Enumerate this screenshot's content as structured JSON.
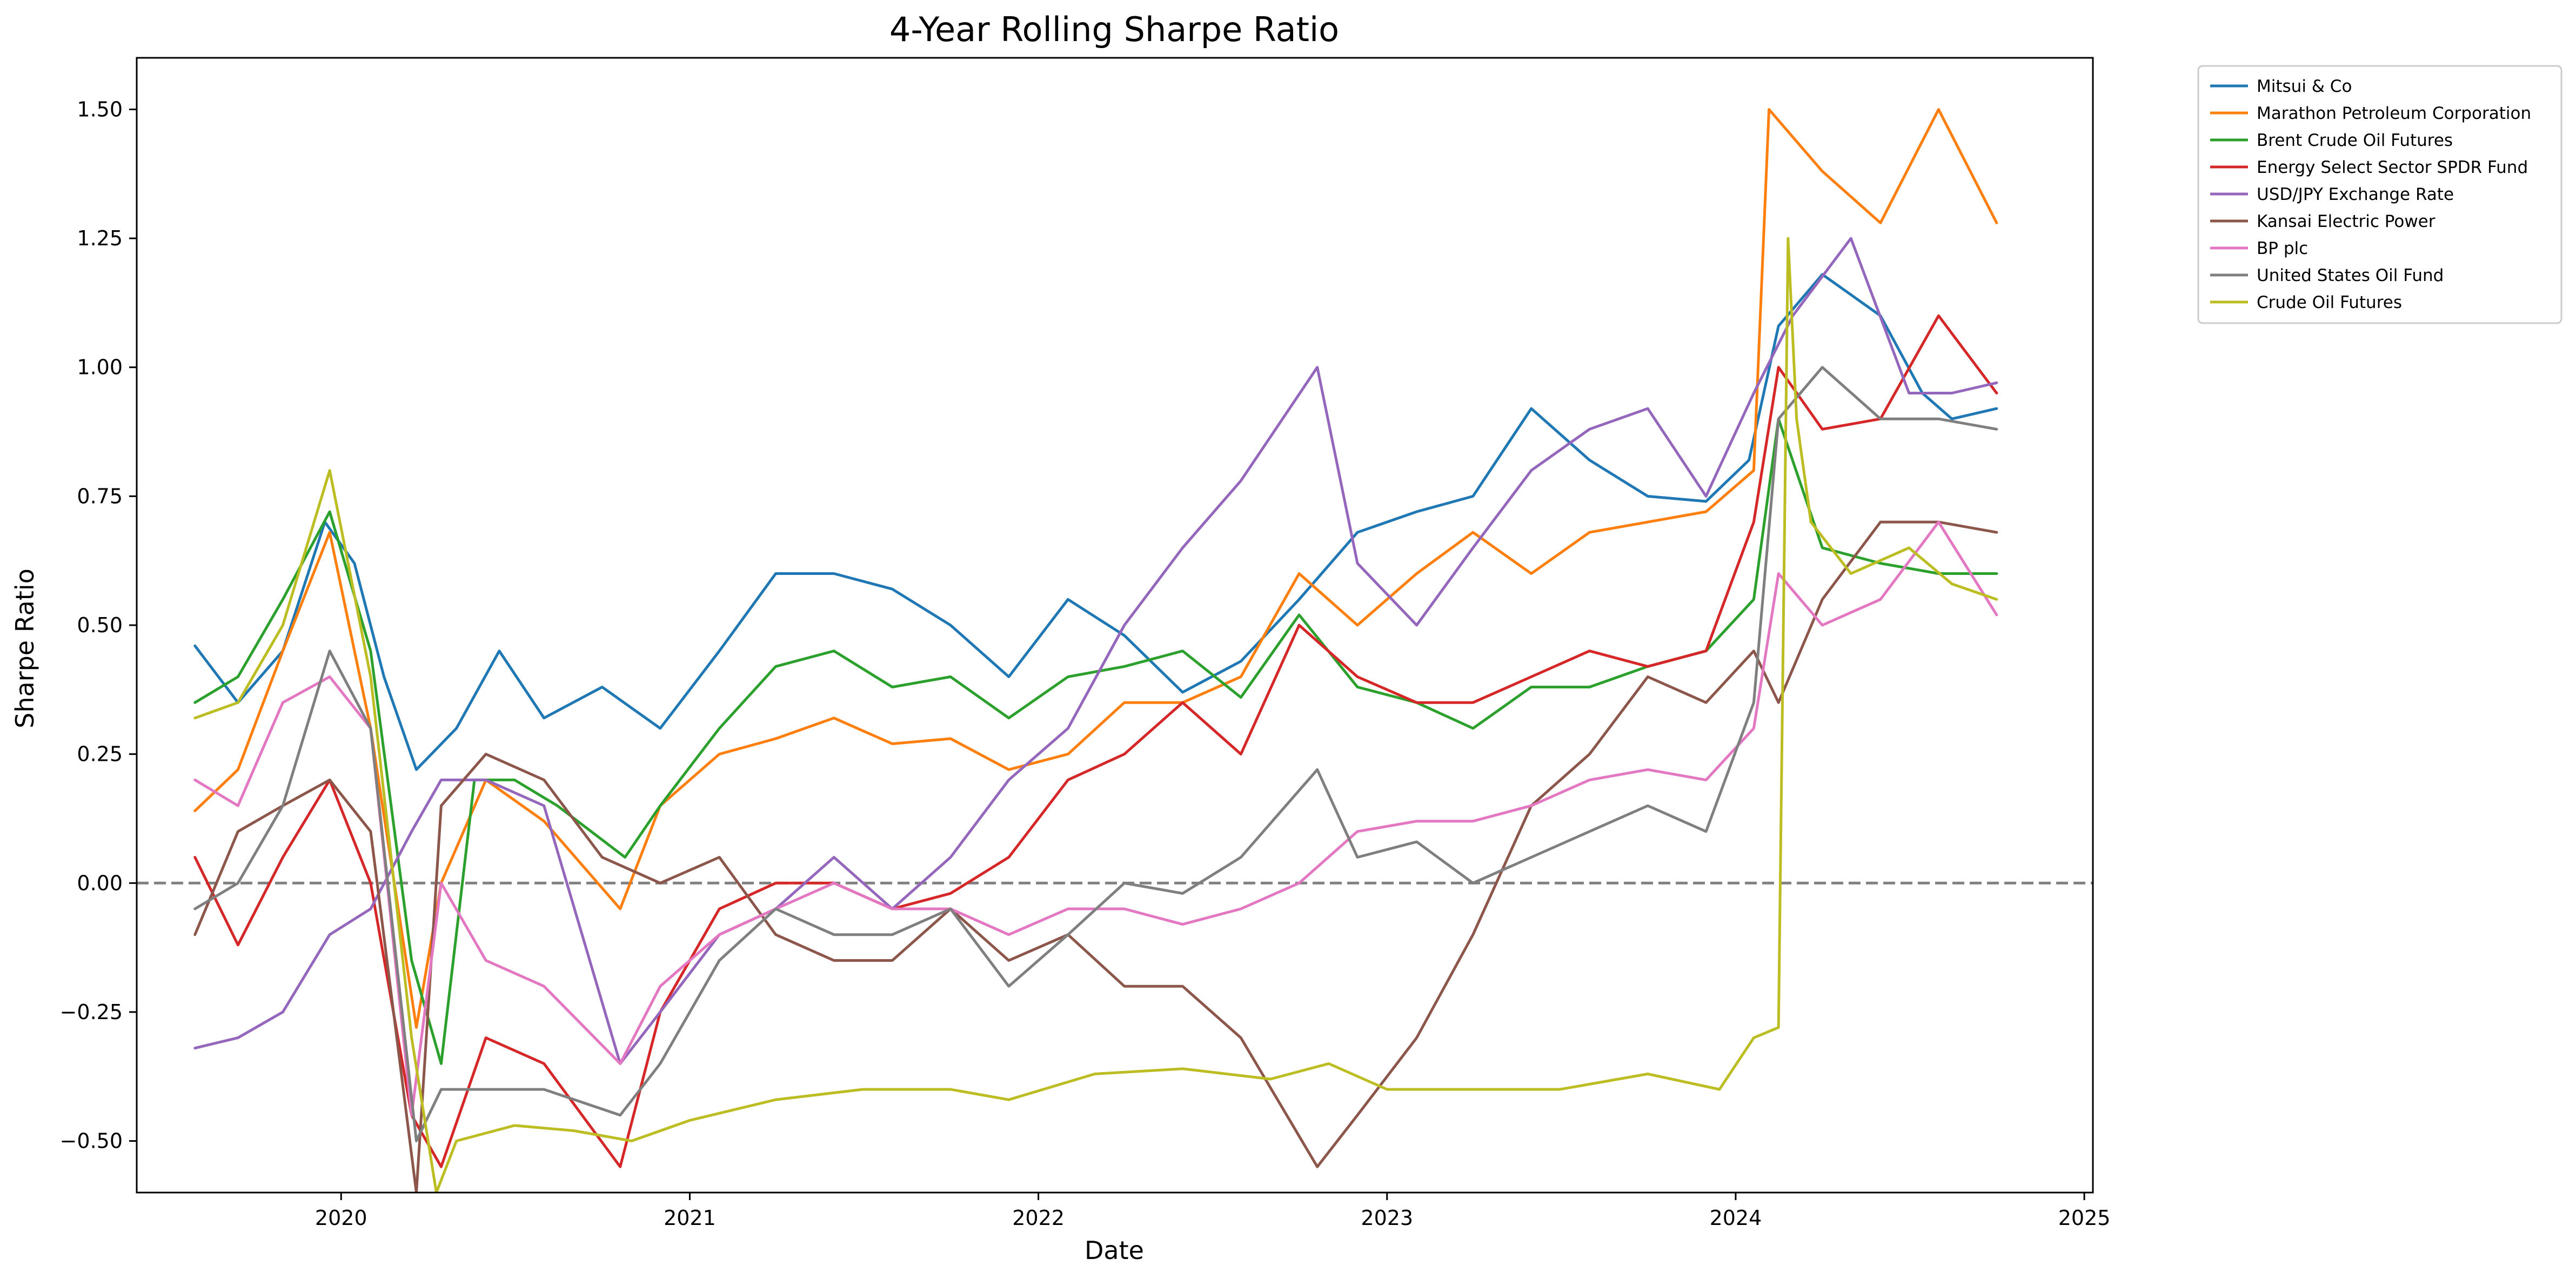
{
  "chart_data": {
    "type": "line",
    "title": "4-Year Rolling Sharpe Ratio",
    "xlabel": "Date",
    "ylabel": "Sharpe Ratio",
    "xlim": [
      "2019-06-01",
      "2025-01-10"
    ],
    "ylim": [
      -0.6,
      1.6
    ],
    "x_ticks": [
      "2020",
      "2021",
      "2022",
      "2023",
      "2024",
      "2025"
    ],
    "y_ticks": [
      1.5,
      1.25,
      1.0,
      0.75,
      0.5,
      0.25,
      0.0,
      -0.25,
      -0.5
    ],
    "y_tick_labels": [
      "1.50",
      "1.25",
      "1.00",
      "0.75",
      "0.50",
      "0.25",
      "0.00",
      "−0.25",
      "−0.50"
    ],
    "reference_line": {
      "y": 0.0,
      "style": "dashed",
      "color": "#808080"
    },
    "legend_position": "outside-top-right",
    "grid": false,
    "series": [
      {
        "name": "Mitsui & Co",
        "color": "#1f77b4",
        "x": [
          "2019-08-01",
          "2019-09-15",
          "2019-11-01",
          "2019-12-15",
          "2020-01-15",
          "2020-02-15",
          "2020-03-20",
          "2020-05-01",
          "2020-06-15",
          "2020-08-01",
          "2020-10-01",
          "2020-12-01",
          "2021-02-01",
          "2021-04-01",
          "2021-06-01",
          "2021-08-01",
          "2021-10-01",
          "2021-12-01",
          "2022-02-01",
          "2022-04-01",
          "2022-06-01",
          "2022-08-01",
          "2022-10-01",
          "2022-12-01",
          "2023-02-01",
          "2023-04-01",
          "2023-06-01",
          "2023-08-01",
          "2023-10-01",
          "2023-12-01",
          "2024-01-15",
          "2024-02-15",
          "2024-04-01",
          "2024-06-01",
          "2024-07-15",
          "2024-08-15",
          "2024-10-01"
        ],
        "values": [
          0.46,
          0.35,
          0.45,
          0.7,
          0.62,
          0.4,
          0.22,
          0.3,
          0.45,
          0.32,
          0.38,
          0.3,
          0.45,
          0.6,
          0.6,
          0.57,
          0.5,
          0.4,
          0.55,
          0.48,
          0.37,
          0.43,
          0.55,
          0.68,
          0.72,
          0.75,
          0.92,
          0.82,
          0.75,
          0.74,
          0.82,
          1.08,
          1.18,
          1.1,
          0.95,
          0.9,
          0.92
        ]
      },
      {
        "name": "Marathon Petroleum Corporation",
        "color": "#ff7f0e",
        "x": [
          "2019-08-01",
          "2019-09-15",
          "2019-11-01",
          "2019-12-20",
          "2020-02-01",
          "2020-03-20",
          "2020-04-15",
          "2020-06-01",
          "2020-08-01",
          "2020-10-20",
          "2020-12-01",
          "2021-02-01",
          "2021-04-01",
          "2021-06-01",
          "2021-08-01",
          "2021-10-01",
          "2021-12-01",
          "2022-02-01",
          "2022-04-01",
          "2022-06-01",
          "2022-08-01",
          "2022-10-01",
          "2022-12-01",
          "2023-02-01",
          "2023-04-01",
          "2023-06-01",
          "2023-08-01",
          "2023-10-01",
          "2023-12-01",
          "2024-01-20",
          "2024-02-05",
          "2024-04-01",
          "2024-06-01",
          "2024-08-01",
          "2024-10-01"
        ],
        "values": [
          0.14,
          0.22,
          0.45,
          0.68,
          0.3,
          -0.28,
          0.0,
          0.2,
          0.12,
          -0.05,
          0.15,
          0.25,
          0.28,
          0.32,
          0.27,
          0.28,
          0.22,
          0.25,
          0.35,
          0.35,
          0.4,
          0.6,
          0.5,
          0.6,
          0.68,
          0.6,
          0.68,
          0.7,
          0.72,
          0.8,
          1.5,
          1.38,
          1.28,
          1.5,
          1.28
        ]
      },
      {
        "name": "Brent Crude Oil Futures",
        "color": "#2ca02c",
        "x": [
          "2019-08-01",
          "2019-09-15",
          "2019-11-01",
          "2019-12-20",
          "2020-02-01",
          "2020-03-15",
          "2020-04-15",
          "2020-05-20",
          "2020-07-01",
          "2020-08-15",
          "2020-10-25",
          "2020-12-01",
          "2021-02-01",
          "2021-04-01",
          "2021-06-01",
          "2021-08-01",
          "2021-10-01",
          "2021-12-01",
          "2022-02-01",
          "2022-04-01",
          "2022-06-01",
          "2022-08-01",
          "2022-10-01",
          "2022-12-01",
          "2023-02-01",
          "2023-04-01",
          "2023-06-01",
          "2023-08-01",
          "2023-10-01",
          "2023-12-01",
          "2024-01-20",
          "2024-02-15",
          "2024-04-01",
          "2024-06-01",
          "2024-08-01",
          "2024-10-01"
        ],
        "values": [
          0.35,
          0.4,
          0.55,
          0.72,
          0.45,
          -0.15,
          -0.35,
          0.2,
          0.2,
          0.15,
          0.05,
          0.15,
          0.3,
          0.42,
          0.45,
          0.38,
          0.4,
          0.32,
          0.4,
          0.42,
          0.45,
          0.36,
          0.52,
          0.38,
          0.35,
          0.3,
          0.38,
          0.38,
          0.42,
          0.45,
          0.55,
          0.9,
          0.65,
          0.62,
          0.6,
          0.6
        ]
      },
      {
        "name": "Energy Select Sector SPDR Fund",
        "color": "#d62728",
        "x": [
          "2019-08-01",
          "2019-09-15",
          "2019-11-01",
          "2019-12-20",
          "2020-02-01",
          "2020-03-15",
          "2020-04-15",
          "2020-06-01",
          "2020-08-01",
          "2020-10-20",
          "2020-12-01",
          "2021-02-01",
          "2021-04-01",
          "2021-06-01",
          "2021-08-01",
          "2021-10-01",
          "2021-12-01",
          "2022-02-01",
          "2022-04-01",
          "2022-06-01",
          "2022-08-01",
          "2022-10-01",
          "2022-12-01",
          "2023-02-01",
          "2023-04-01",
          "2023-06-01",
          "2023-08-01",
          "2023-10-01",
          "2023-12-01",
          "2024-01-20",
          "2024-02-15",
          "2024-04-01",
          "2024-06-01",
          "2024-08-01",
          "2024-10-01"
        ],
        "values": [
          0.05,
          -0.12,
          0.05,
          0.2,
          0.0,
          -0.45,
          -0.55,
          -0.3,
          -0.35,
          -0.55,
          -0.25,
          -0.05,
          0.0,
          0.0,
          -0.05,
          -0.02,
          0.05,
          0.2,
          0.25,
          0.35,
          0.25,
          0.5,
          0.4,
          0.35,
          0.35,
          0.4,
          0.45,
          0.42,
          0.45,
          0.7,
          1.0,
          0.88,
          0.9,
          1.1,
          0.95
        ]
      },
      {
        "name": "USD/JPY Exchange Rate",
        "color": "#9467bd",
        "x": [
          "2019-08-01",
          "2019-09-15",
          "2019-11-01",
          "2019-12-20",
          "2020-02-01",
          "2020-03-15",
          "2020-04-15",
          "2020-06-01",
          "2020-08-01",
          "2020-10-20",
          "2020-12-01",
          "2021-02-01",
          "2021-04-01",
          "2021-06-01",
          "2021-08-01",
          "2021-10-01",
          "2021-12-01",
          "2022-02-01",
          "2022-04-01",
          "2022-06-01",
          "2022-08-01",
          "2022-10-20",
          "2022-12-01",
          "2023-02-01",
          "2023-04-01",
          "2023-06-01",
          "2023-08-01",
          "2023-10-01",
          "2023-12-01",
          "2024-01-20",
          "2024-03-01",
          "2024-05-01",
          "2024-07-01",
          "2024-08-15",
          "2024-10-01"
        ],
        "values": [
          -0.32,
          -0.3,
          -0.25,
          -0.1,
          -0.05,
          0.1,
          0.2,
          0.2,
          0.15,
          -0.35,
          -0.25,
          -0.1,
          -0.05,
          0.05,
          -0.05,
          0.05,
          0.2,
          0.3,
          0.5,
          0.65,
          0.78,
          1.0,
          0.62,
          0.5,
          0.65,
          0.8,
          0.88,
          0.92,
          0.75,
          0.95,
          1.1,
          1.25,
          0.95,
          0.95,
          0.97
        ]
      },
      {
        "name": "Kansai Electric Power",
        "color": "#8c564b",
        "x": [
          "2019-08-01",
          "2019-09-15",
          "2019-11-01",
          "2019-12-20",
          "2020-02-01",
          "2020-03-20",
          "2020-04-15",
          "2020-06-01",
          "2020-08-01",
          "2020-10-01",
          "2020-12-01",
          "2021-02-01",
          "2021-04-01",
          "2021-06-01",
          "2021-08-01",
          "2021-10-01",
          "2021-12-01",
          "2022-02-01",
          "2022-04-01",
          "2022-06-01",
          "2022-08-01",
          "2022-10-20",
          "2022-12-01",
          "2023-02-01",
          "2023-04-01",
          "2023-06-01",
          "2023-08-01",
          "2023-10-01",
          "2023-12-01",
          "2024-01-20",
          "2024-02-15",
          "2024-04-01",
          "2024-06-01",
          "2024-08-01",
          "2024-10-01"
        ],
        "values": [
          -0.1,
          0.1,
          0.15,
          0.2,
          0.1,
          -0.6,
          0.15,
          0.25,
          0.2,
          0.05,
          0.0,
          0.05,
          -0.1,
          -0.15,
          -0.15,
          -0.05,
          -0.15,
          -0.1,
          -0.2,
          -0.2,
          -0.3,
          -0.55,
          -0.45,
          -0.3,
          -0.1,
          0.15,
          0.25,
          0.4,
          0.35,
          0.45,
          0.35,
          0.55,
          0.7,
          0.7,
          0.68
        ]
      },
      {
        "name": "BP plc",
        "color": "#e377c2",
        "x": [
          "2019-08-01",
          "2019-09-15",
          "2019-11-01",
          "2019-12-20",
          "2020-02-01",
          "2020-03-15",
          "2020-04-15",
          "2020-06-01",
          "2020-08-01",
          "2020-10-20",
          "2020-12-01",
          "2021-02-01",
          "2021-04-01",
          "2021-06-01",
          "2021-08-01",
          "2021-10-01",
          "2021-12-01",
          "2022-02-01",
          "2022-04-01",
          "2022-06-01",
          "2022-08-01",
          "2022-10-01",
          "2022-12-01",
          "2023-02-01",
          "2023-04-01",
          "2023-06-01",
          "2023-08-01",
          "2023-10-01",
          "2023-12-01",
          "2024-01-20",
          "2024-02-15",
          "2024-04-01",
          "2024-06-01",
          "2024-08-01",
          "2024-10-01"
        ],
        "values": [
          0.2,
          0.15,
          0.35,
          0.4,
          0.3,
          -0.45,
          0.0,
          -0.15,
          -0.2,
          -0.35,
          -0.2,
          -0.1,
          -0.05,
          0.0,
          -0.05,
          -0.05,
          -0.1,
          -0.05,
          -0.05,
          -0.08,
          -0.05,
          0.0,
          0.1,
          0.12,
          0.12,
          0.15,
          0.2,
          0.22,
          0.2,
          0.3,
          0.6,
          0.5,
          0.55,
          0.7,
          0.52
        ]
      },
      {
        "name": "United States Oil Fund",
        "color": "#7f7f7f",
        "x": [
          "2019-08-01",
          "2019-09-15",
          "2019-11-01",
          "2019-12-20",
          "2020-02-01",
          "2020-03-20",
          "2020-04-15",
          "2020-06-01",
          "2020-08-01",
          "2020-10-20",
          "2020-12-01",
          "2021-02-01",
          "2021-04-01",
          "2021-06-01",
          "2021-08-01",
          "2021-10-01",
          "2021-12-01",
          "2022-02-01",
          "2022-04-01",
          "2022-06-01",
          "2022-08-01",
          "2022-10-20",
          "2022-12-01",
          "2023-02-01",
          "2023-04-01",
          "2023-06-01",
          "2023-08-01",
          "2023-10-01",
          "2023-12-01",
          "2024-01-20",
          "2024-02-15",
          "2024-04-01",
          "2024-06-01",
          "2024-08-01",
          "2024-10-01"
        ],
        "values": [
          -0.05,
          0.0,
          0.15,
          0.45,
          0.3,
          -0.5,
          -0.4,
          -0.4,
          -0.4,
          -0.45,
          -0.35,
          -0.15,
          -0.05,
          -0.1,
          -0.1,
          -0.05,
          -0.2,
          -0.1,
          0.0,
          -0.02,
          0.05,
          0.22,
          0.05,
          0.08,
          0.0,
          0.05,
          0.1,
          0.15,
          0.1,
          0.35,
          0.9,
          1.0,
          0.9,
          0.9,
          0.88
        ]
      },
      {
        "name": "Crude Oil Futures",
        "color": "#bcbd22",
        "x": [
          "2019-08-01",
          "2019-09-15",
          "2019-11-01",
          "2019-12-20",
          "2020-02-01",
          "2020-03-15",
          "2020-04-10",
          "2020-05-01",
          "2020-07-01",
          "2020-09-01",
          "2020-11-01",
          "2021-01-01",
          "2021-04-01",
          "2021-07-01",
          "2021-10-01",
          "2021-12-01",
          "2022-03-01",
          "2022-06-01",
          "2022-09-01",
          "2022-11-01",
          "2023-01-01",
          "2023-04-01",
          "2023-07-01",
          "2023-10-01",
          "2023-12-15",
          "2024-01-20",
          "2024-02-15",
          "2024-02-25",
          "2024-03-05",
          "2024-03-20",
          "2024-05-01",
          "2024-07-01",
          "2024-08-15",
          "2024-10-01"
        ],
        "values": [
          0.32,
          0.35,
          0.5,
          0.8,
          0.4,
          -0.3,
          -0.6,
          -0.5,
          -0.47,
          -0.48,
          -0.5,
          -0.46,
          -0.42,
          -0.4,
          -0.4,
          -0.42,
          -0.37,
          -0.36,
          -0.38,
          -0.35,
          -0.4,
          -0.4,
          -0.4,
          -0.37,
          -0.4,
          -0.3,
          -0.28,
          1.25,
          0.9,
          0.7,
          0.6,
          0.65,
          0.58,
          0.55
        ]
      }
    ]
  }
}
